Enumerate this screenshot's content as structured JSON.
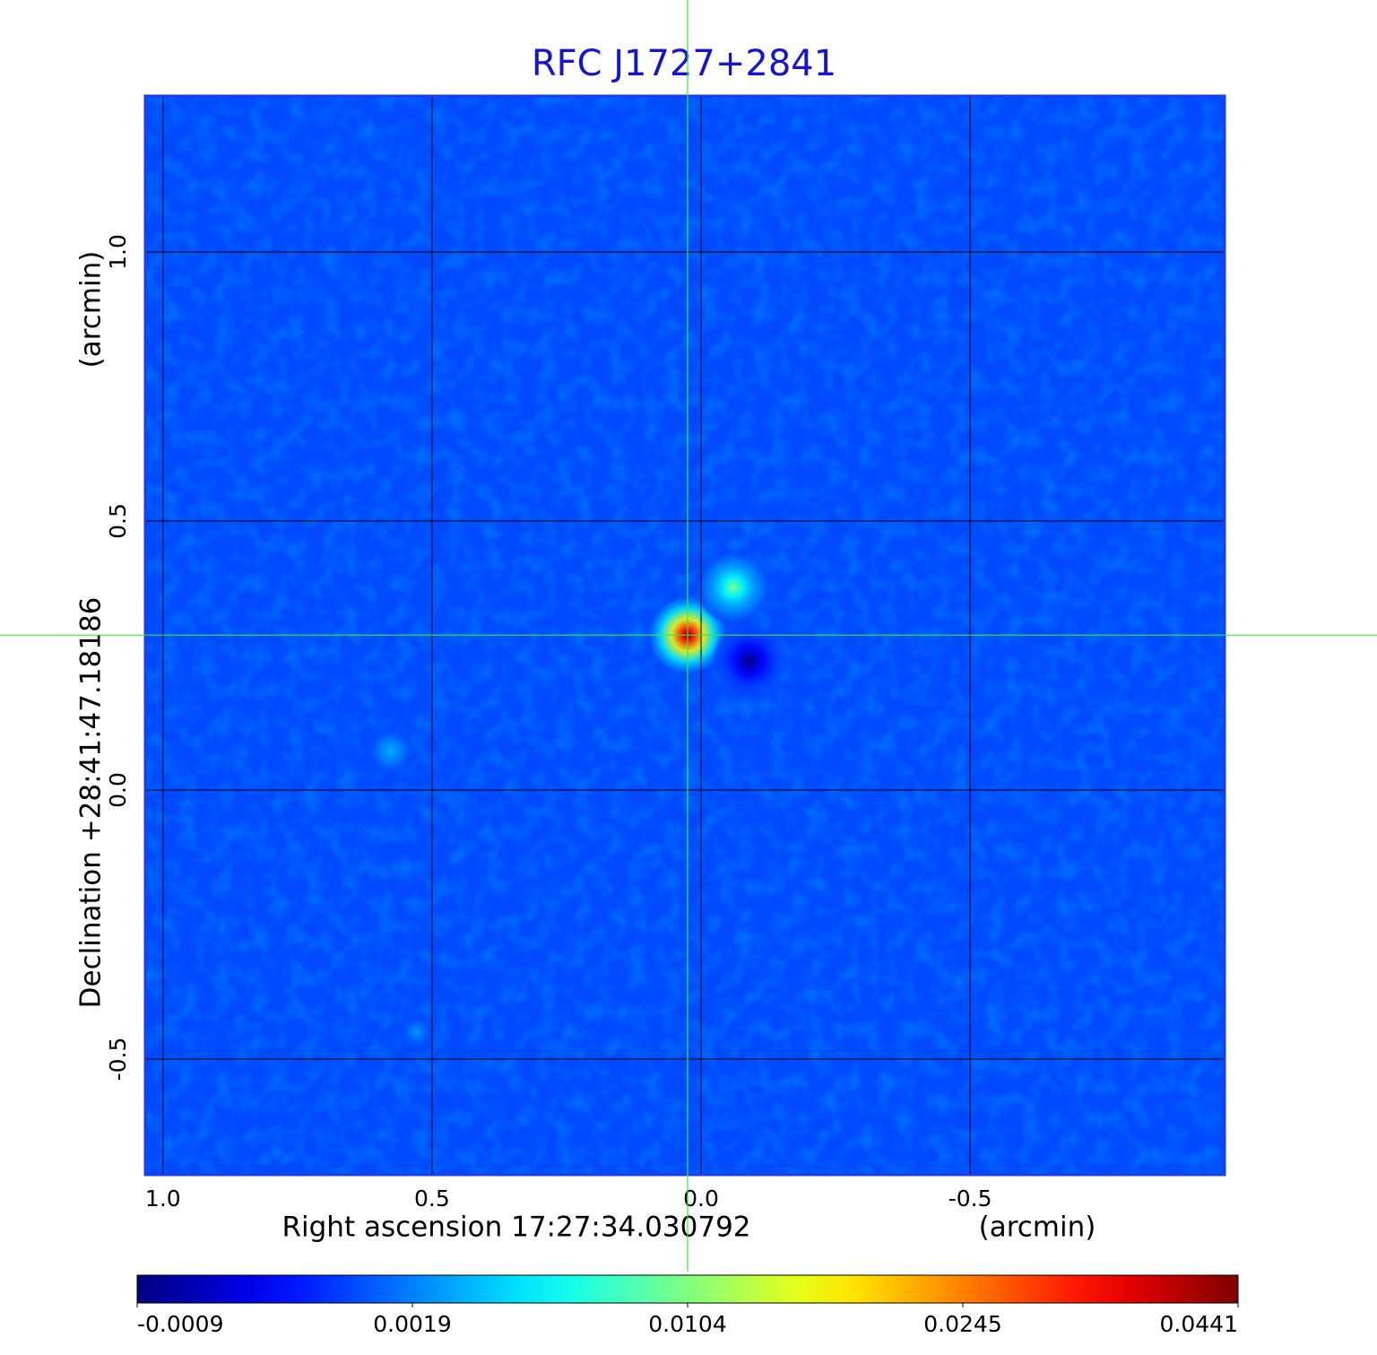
{
  "chart_data": {
    "type": "heatmap",
    "title": "RFC J1727+2841",
    "x_label": "Right ascension  17:27:34.030792",
    "x_unit": "(arcmin)",
    "y_label": "Declination  +28:41:47.18186",
    "y_unit": "(arcmin)",
    "xlim": [
      1.033,
      -0.973
    ],
    "ylim": [
      -0.715,
      1.29
    ],
    "xticks": [
      {
        "value": 1,
        "label": "1.0"
      },
      0.5,
      {
        "value": 0,
        "label": "0.0"
      },
      -0.5
    ],
    "yticks": [
      {
        "value": 1,
        "label": "1.0"
      },
      0.5,
      {
        "value": 0,
        "label": "0.0"
      },
      -0.5
    ],
    "grid": true,
    "grid_color": "#000000",
    "title_color": "#1414d2",
    "crosshair": {
      "x": 0.025,
      "y": 0.288,
      "color": "#33ee33"
    },
    "background_value": 0.0013,
    "sources": {
      "x": [
        0.025,
        -0.06,
        0.577,
        0.528,
        -0.09
      ],
      "y": [
        0.288,
        0.377,
        0.072,
        -0.45,
        0.24
      ],
      "values": [
        0.0441,
        0.0104,
        0.0035,
        0.0024,
        -0.0009
      ],
      "size": [
        0.075,
        0.07,
        0.045,
        0.035,
        0.07
      ]
    },
    "colorbar": {
      "colormap": "jet",
      "ticks": [
        -0.0009,
        0.0019,
        0.0104,
        0.0245,
        0.0441
      ]
    }
  }
}
